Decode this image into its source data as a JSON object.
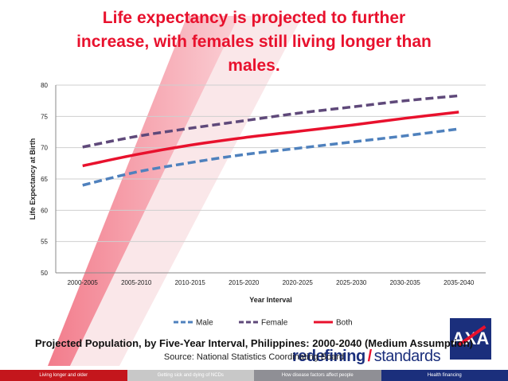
{
  "title_lines": [
    "Life expectancy is projected to further",
    "increase, with females still living longer than",
    "males."
  ],
  "chart_data": {
    "type": "line",
    "x": [
      "2000-2005",
      "2005-2010",
      "2010-2015",
      "2015-2020",
      "2020-2025",
      "2025-2030",
      "2030-2035",
      "2035-2040"
    ],
    "series": [
      {
        "name": "Male",
        "values": [
          64.0,
          66.1,
          67.6,
          68.9,
          69.9,
          70.9,
          71.9,
          73.0
        ],
        "color": "#4f81bd",
        "style": "dashed"
      },
      {
        "name": "Female",
        "values": [
          70.1,
          71.8,
          73.1,
          74.3,
          75.5,
          76.5,
          77.5,
          78.3
        ],
        "color": "#5f497a",
        "style": "dashed"
      },
      {
        "name": "Both",
        "values": [
          67.1,
          68.9,
          70.4,
          71.6,
          72.6,
          73.6,
          74.7,
          75.7
        ],
        "color": "#e8112d",
        "style": "solid"
      }
    ],
    "ylim": [
      50,
      80
    ],
    "yticks": [
      50,
      55,
      60,
      65,
      70,
      75,
      80
    ],
    "xlabel": "Year Interval",
    "ylabel": "Life Expectancy at Birth",
    "grid": true,
    "legend": "bottom"
  },
  "caption": "Projected Population, by Five-Year Interval, Philippines: 2000-2040 (Medium Assumption)",
  "source": "Source: National Statistics Coordinating Board",
  "brand": {
    "part1": "redefining",
    "part2": "standards"
  },
  "logo_text": "AXA",
  "footer_tabs": [
    "Living longer and older",
    "Getting sick and dying of NCDs",
    "How disease factors affect people",
    "Health financing"
  ],
  "colors": {
    "accent": "#e8112d",
    "navy": "#1b2f7c"
  }
}
